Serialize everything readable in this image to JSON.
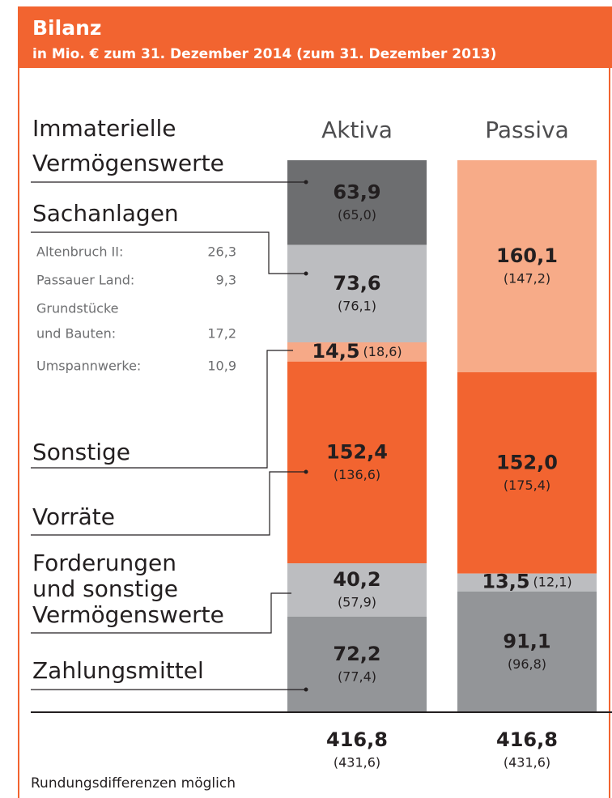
{
  "chart_data": {
    "type": "stacked_bar",
    "title": "Bilanz",
    "subtitle": "in Mio. € zum 31. Dezember 2014 (zum 31. Dezember 2013)",
    "categories": [
      "Aktiva",
      "Passiva"
    ],
    "stacks": [
      {
        "segments": [
          {
            "value": 63.9,
            "value_label": "63,9",
            "prior_label": "(65,0)",
            "color": "#6d6e70"
          },
          {
            "value": 73.6,
            "value_label": "73,6",
            "prior_label": "(76,1)",
            "color": "#bcbdc0"
          },
          {
            "value": 14.5,
            "value_label": "14,5",
            "prior_label": "(18,6)",
            "color": "#f6a987"
          },
          {
            "value": 152.4,
            "value_label": "152,4",
            "prior_label": "(136,6)",
            "color": "#f26430"
          },
          {
            "value": 40.2,
            "value_label": "40,2",
            "prior_label": "(57,9)",
            "color": "#bcbdc0"
          },
          {
            "value": 72.2,
            "value_label": "72,2",
            "prior_label": "(77,4)",
            "color": "#939598"
          }
        ],
        "total_label": "416,8",
        "total_prior_label": "(431,6)"
      },
      {
        "segments": [
          {
            "value": 160.1,
            "value_label": "160,1",
            "prior_label": "(147,2)",
            "color": "#f7ab88"
          },
          {
            "value": 152.0,
            "value_label": "152,0",
            "prior_label": "(175,4)",
            "color": "#f26430"
          },
          {
            "value": 13.5,
            "value_label": "13,5",
            "prior_label": "(12,1)",
            "color": "#bcbdc0"
          },
          {
            "value": 91.1,
            "value_label": "91,1",
            "prior_label": "(96,8)",
            "color": "#939598"
          }
        ],
        "total_label": "416,8",
        "total_prior_label": "(431,6)"
      }
    ],
    "aktiva_labels": [
      [
        "Immaterielle",
        "Vermögenswerte"
      ],
      [
        "Sachanlagen"
      ],
      [
        "Sonstige"
      ],
      [
        "Vorräte"
      ],
      [
        "Forderungen",
        "und sonstige",
        "Vermögenswerte"
      ],
      [
        "Zahlungsmittel"
      ]
    ],
    "sachanlagen_details": [
      {
        "label": "Altenbruch II:",
        "value": "26,3"
      },
      {
        "label": "Passauer Land:",
        "value": "9,3"
      },
      {
        "label": "Grundstücke",
        "value": ""
      },
      {
        "label": "und Bauten:",
        "value": "17,2"
      },
      {
        "label": "Umspannwerke:",
        "value": "10,9"
      }
    ],
    "footnote": "Rundungsdifferenzen möglich"
  }
}
